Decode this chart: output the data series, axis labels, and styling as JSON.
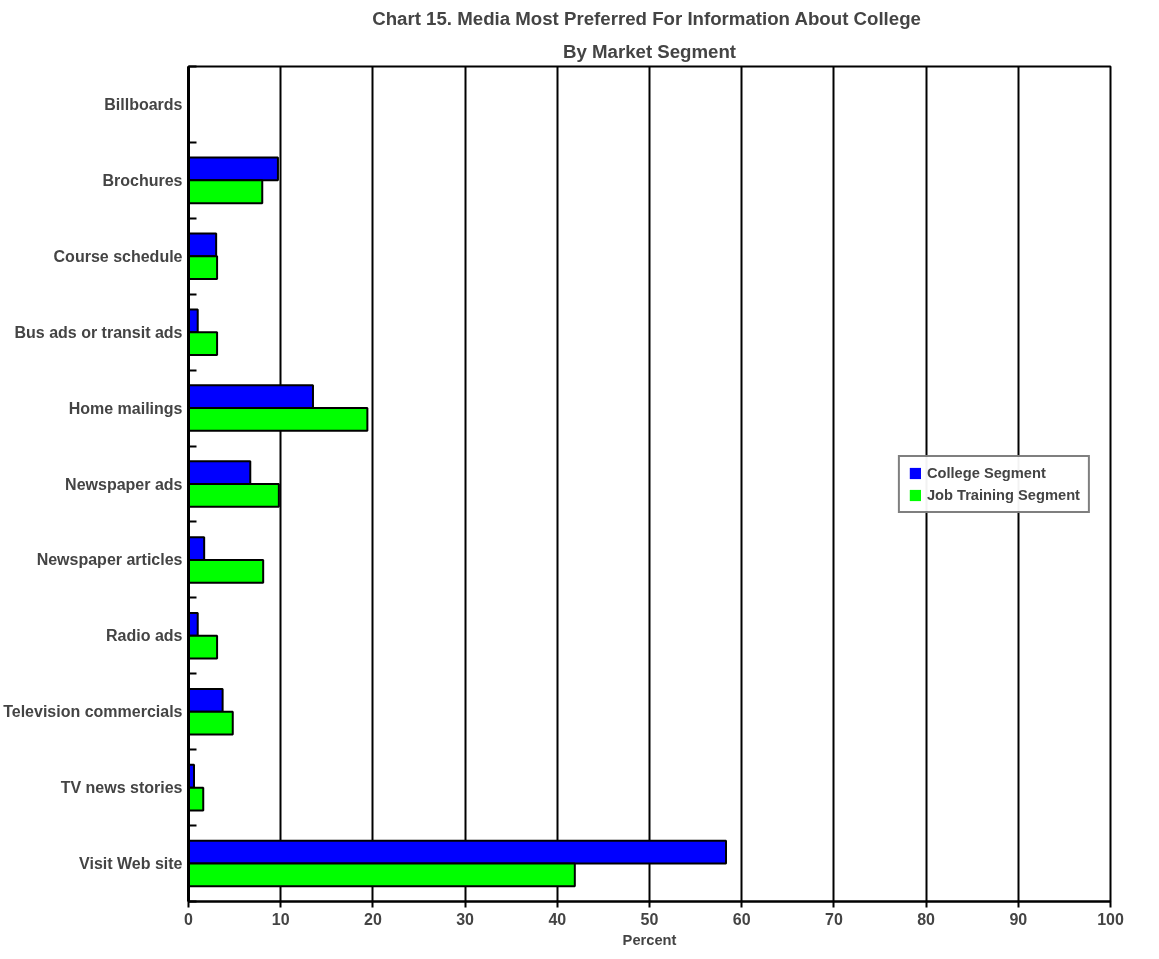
{
  "chart_data": {
    "type": "bar",
    "orientation": "horizontal",
    "title": "Chart 15.  Media Most Preferred For Information About College",
    "subtitle": "By Market Segment",
    "xlabel": "Percent",
    "categories": [
      "Billboards",
      "Brochures",
      "Course schedule",
      "Bus ads or transit ads",
      "Home mailings",
      "Newspaper ads",
      "Newspaper articles",
      "Radio ads",
      "Television commercials",
      "TV news stories",
      "Visit Web site"
    ],
    "series": [
      {
        "name": "College Segment",
        "color": "#0000ff",
        "values": [
          0,
          9.7,
          3.0,
          1.0,
          13.5,
          6.7,
          1.7,
          1.0,
          3.7,
          0.6,
          58.3
        ]
      },
      {
        "name": "Job Training Segment",
        "color": "#00ff00",
        "values": [
          0,
          8.0,
          3.1,
          3.1,
          19.4,
          9.8,
          8.1,
          3.1,
          4.8,
          1.6,
          41.9
        ]
      }
    ],
    "xlim": [
      0,
      100
    ],
    "xticks": [
      0,
      10,
      20,
      30,
      40,
      50,
      60,
      70,
      80,
      90,
      100
    ],
    "grid": "x",
    "legend": "right"
  }
}
